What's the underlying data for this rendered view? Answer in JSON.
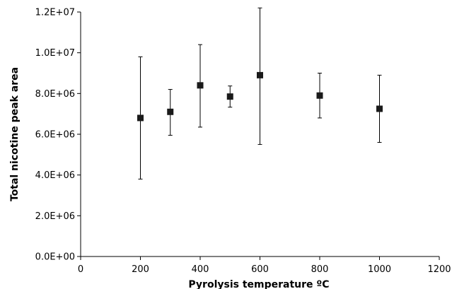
{
  "chart_data": {
    "type": "scatter",
    "title": "",
    "xlabel": "Pyrolysis temperature ºC",
    "ylabel": "Total nicotine peak area",
    "xlim": [
      0,
      1200
    ],
    "ylim": [
      0,
      12000000
    ],
    "x_ticks": [
      0,
      200,
      400,
      600,
      800,
      1000,
      1200
    ],
    "x_tick_labels": [
      "0",
      "200",
      "400",
      "600",
      "800",
      "1000",
      "1200"
    ],
    "y_ticks": [
      0,
      2000000,
      4000000,
      6000000,
      8000000,
      10000000,
      12000000
    ],
    "y_tick_labels": [
      "0.0E+00",
      "2.0E+06",
      "4.0E+06",
      "6.0E+06",
      "8.0E+06",
      "1.0E+07",
      "1.2E+07"
    ],
    "grid": false,
    "legend": "none",
    "marker": "square",
    "marker_color": "#1a1a1a",
    "points": [
      {
        "x": 200,
        "y": 6800000,
        "err_low": 3800000,
        "err_high": 9800000
      },
      {
        "x": 300,
        "y": 7100000,
        "err_low": 5950000,
        "err_high": 8200000
      },
      {
        "x": 400,
        "y": 8400000,
        "err_low": 6350000,
        "err_high": 10400000
      },
      {
        "x": 500,
        "y": 7850000,
        "err_low": 7330000,
        "err_high": 8370000
      },
      {
        "x": 600,
        "y": 8900000,
        "err_low": 5500000,
        "err_high": 12200000
      },
      {
        "x": 800,
        "y": 7900000,
        "err_low": 6800000,
        "err_high": 9000000
      },
      {
        "x": 1000,
        "y": 7250000,
        "err_low": 5600000,
        "err_high": 8900000
      }
    ]
  }
}
